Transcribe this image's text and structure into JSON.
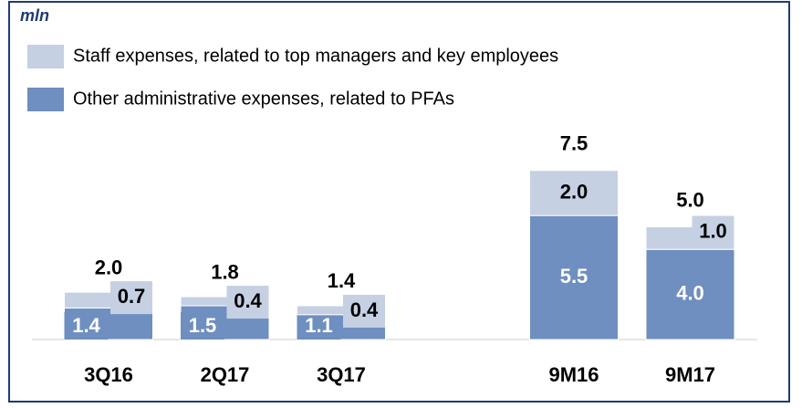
{
  "chart_data": {
    "type": "bar",
    "stacked": true,
    "title": "mln",
    "categories": [
      "3Q16",
      "2Q17",
      "3Q17",
      "9M16",
      "9M17"
    ],
    "series": [
      {
        "name": "Other administrative expenses, related to PFAs",
        "color": "#6e8fbf",
        "values": [
          1.4,
          1.5,
          1.1,
          5.5,
          4.0
        ],
        "value_labels": [
          "1.4",
          "1.5",
          "1.1",
          "5.5",
          "4.0"
        ]
      },
      {
        "name": "Staff expenses, related to top managers and key employees",
        "color": "#c5d0e3",
        "values": [
          0.7,
          0.4,
          0.4,
          2.0,
          1.0
        ],
        "value_labels": [
          "0.7",
          "0.4",
          "0.4",
          "2.0",
          "1.0"
        ]
      }
    ],
    "totals": [
      2.0,
      1.8,
      1.4,
      7.5,
      5.0
    ],
    "total_labels": [
      "2.0",
      "1.8",
      "1.4",
      "7.5",
      "5.0"
    ]
  }
}
